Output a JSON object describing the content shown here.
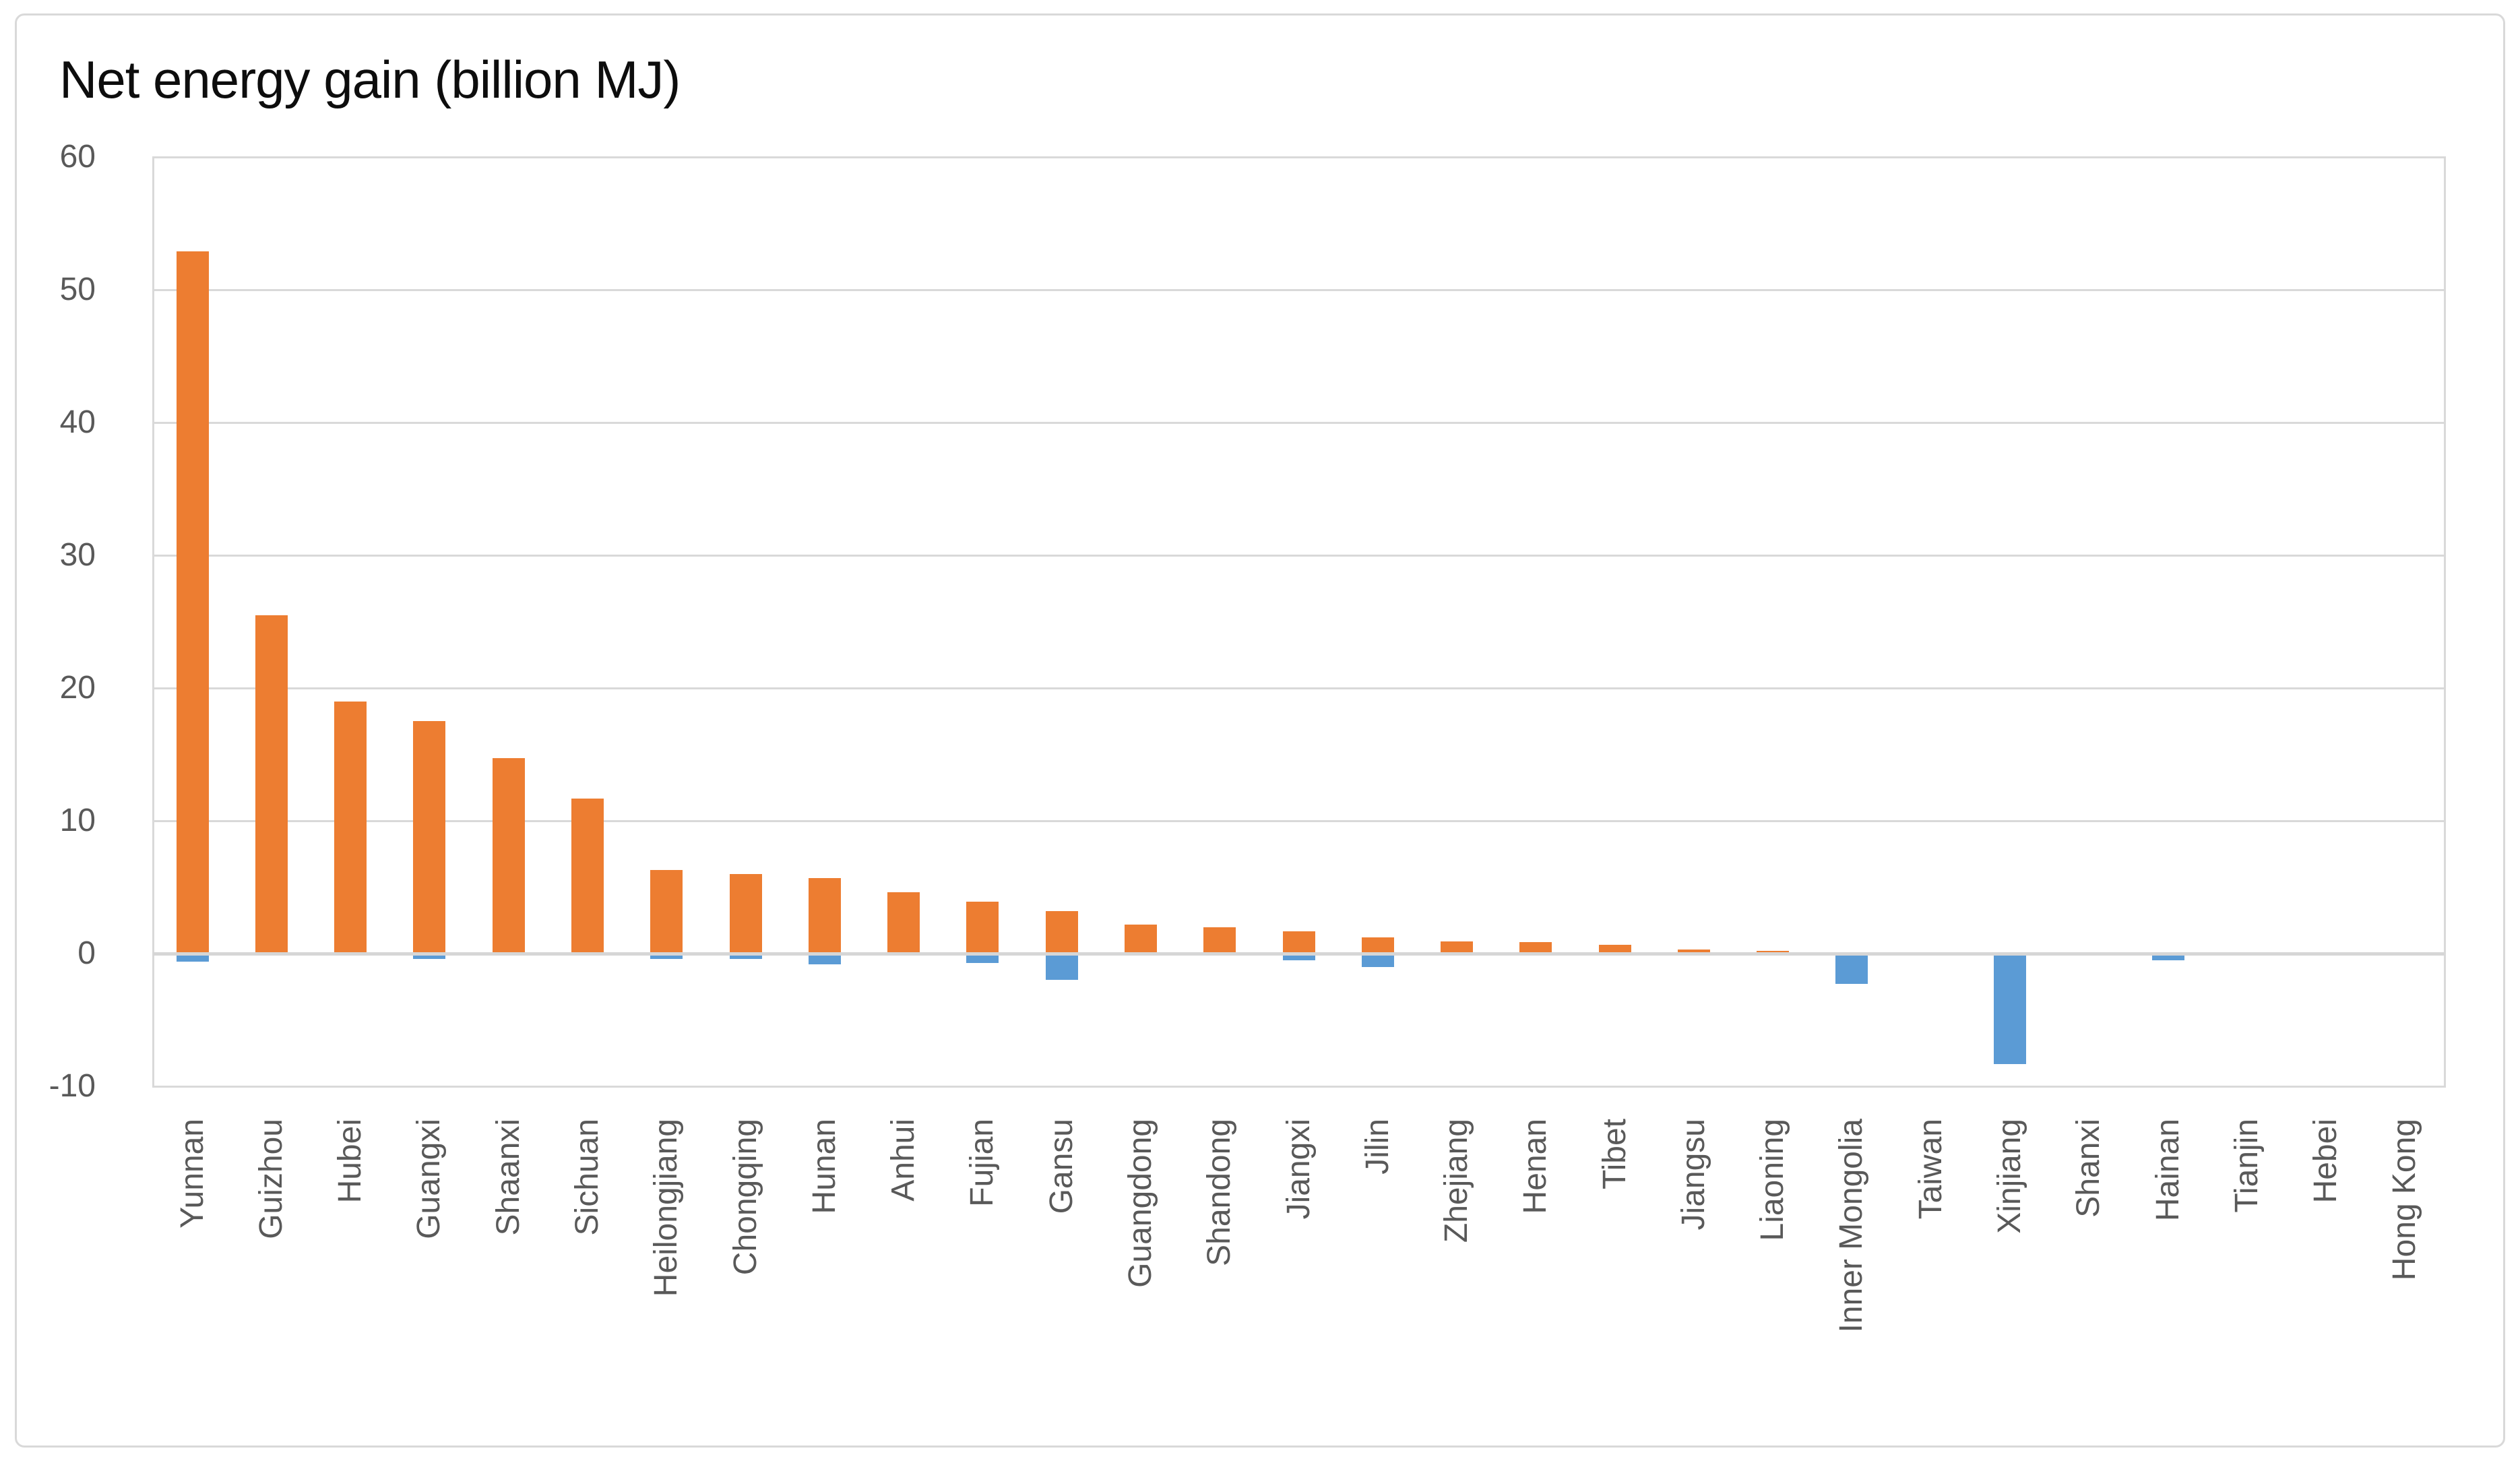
{
  "chart_data": {
    "type": "bar",
    "title": "Net energy gain (billion MJ)",
    "xlabel": "",
    "ylabel": "",
    "categories": [
      "Yunnan",
      "Guizhou",
      "Hubei",
      "Guangxi",
      "Shaanxi",
      "Sichuan",
      "Heilongjiang",
      "Chongqing",
      "Hunan",
      "Anhui",
      "Fujian",
      "Gansu",
      "Guangdong",
      "Shandong",
      "Jiangxi",
      "Jilin",
      "Zhejiang",
      "Henan",
      "Tibet",
      "Jiangsu",
      "Liaoning",
      "Inner Mongolia",
      "Taiwan",
      "Xinjiang",
      "Shanxi",
      "Hainan",
      "Tianjin",
      "Hebei",
      "Hong Kong"
    ],
    "series": [
      {
        "name": "orange",
        "color": "#ED7D31",
        "values": [
          52.9,
          25.5,
          19.0,
          17.5,
          14.7,
          11.7,
          6.3,
          6.0,
          5.7,
          4.6,
          3.9,
          3.2,
          2.2,
          2.0,
          1.7,
          1.2,
          0.9,
          0.85,
          0.65,
          0.3,
          0.2,
          0,
          0,
          0,
          0,
          0,
          0,
          0,
          0
        ]
      },
      {
        "name": "blue",
        "color": "#5B9BD5",
        "values": [
          -0.6,
          0,
          0,
          -0.4,
          0,
          0,
          -0.4,
          -0.4,
          -0.8,
          0,
          -0.7,
          -2.0,
          0,
          0,
          -0.5,
          -1.0,
          0,
          0,
          0,
          0,
          0,
          -2.3,
          0,
          -8.3,
          0,
          -0.5,
          0,
          0,
          0
        ]
      }
    ],
    "ylim": [
      -10,
      60
    ],
    "yticks": [
      60,
      50,
      40,
      30,
      20,
      10,
      0,
      -10
    ],
    "grid": true,
    "legend_position": "none"
  },
  "colors": {
    "background": "#FFFFFF",
    "frame_border": "#D9D9D9",
    "gridline": "#D9D9D9",
    "axis_line": "#D6D6D6",
    "tick_text": "#595959",
    "title_text": "#0D0D0D",
    "bar_positive": "#ED7D31",
    "bar_negative": "#5B9BD5"
  }
}
